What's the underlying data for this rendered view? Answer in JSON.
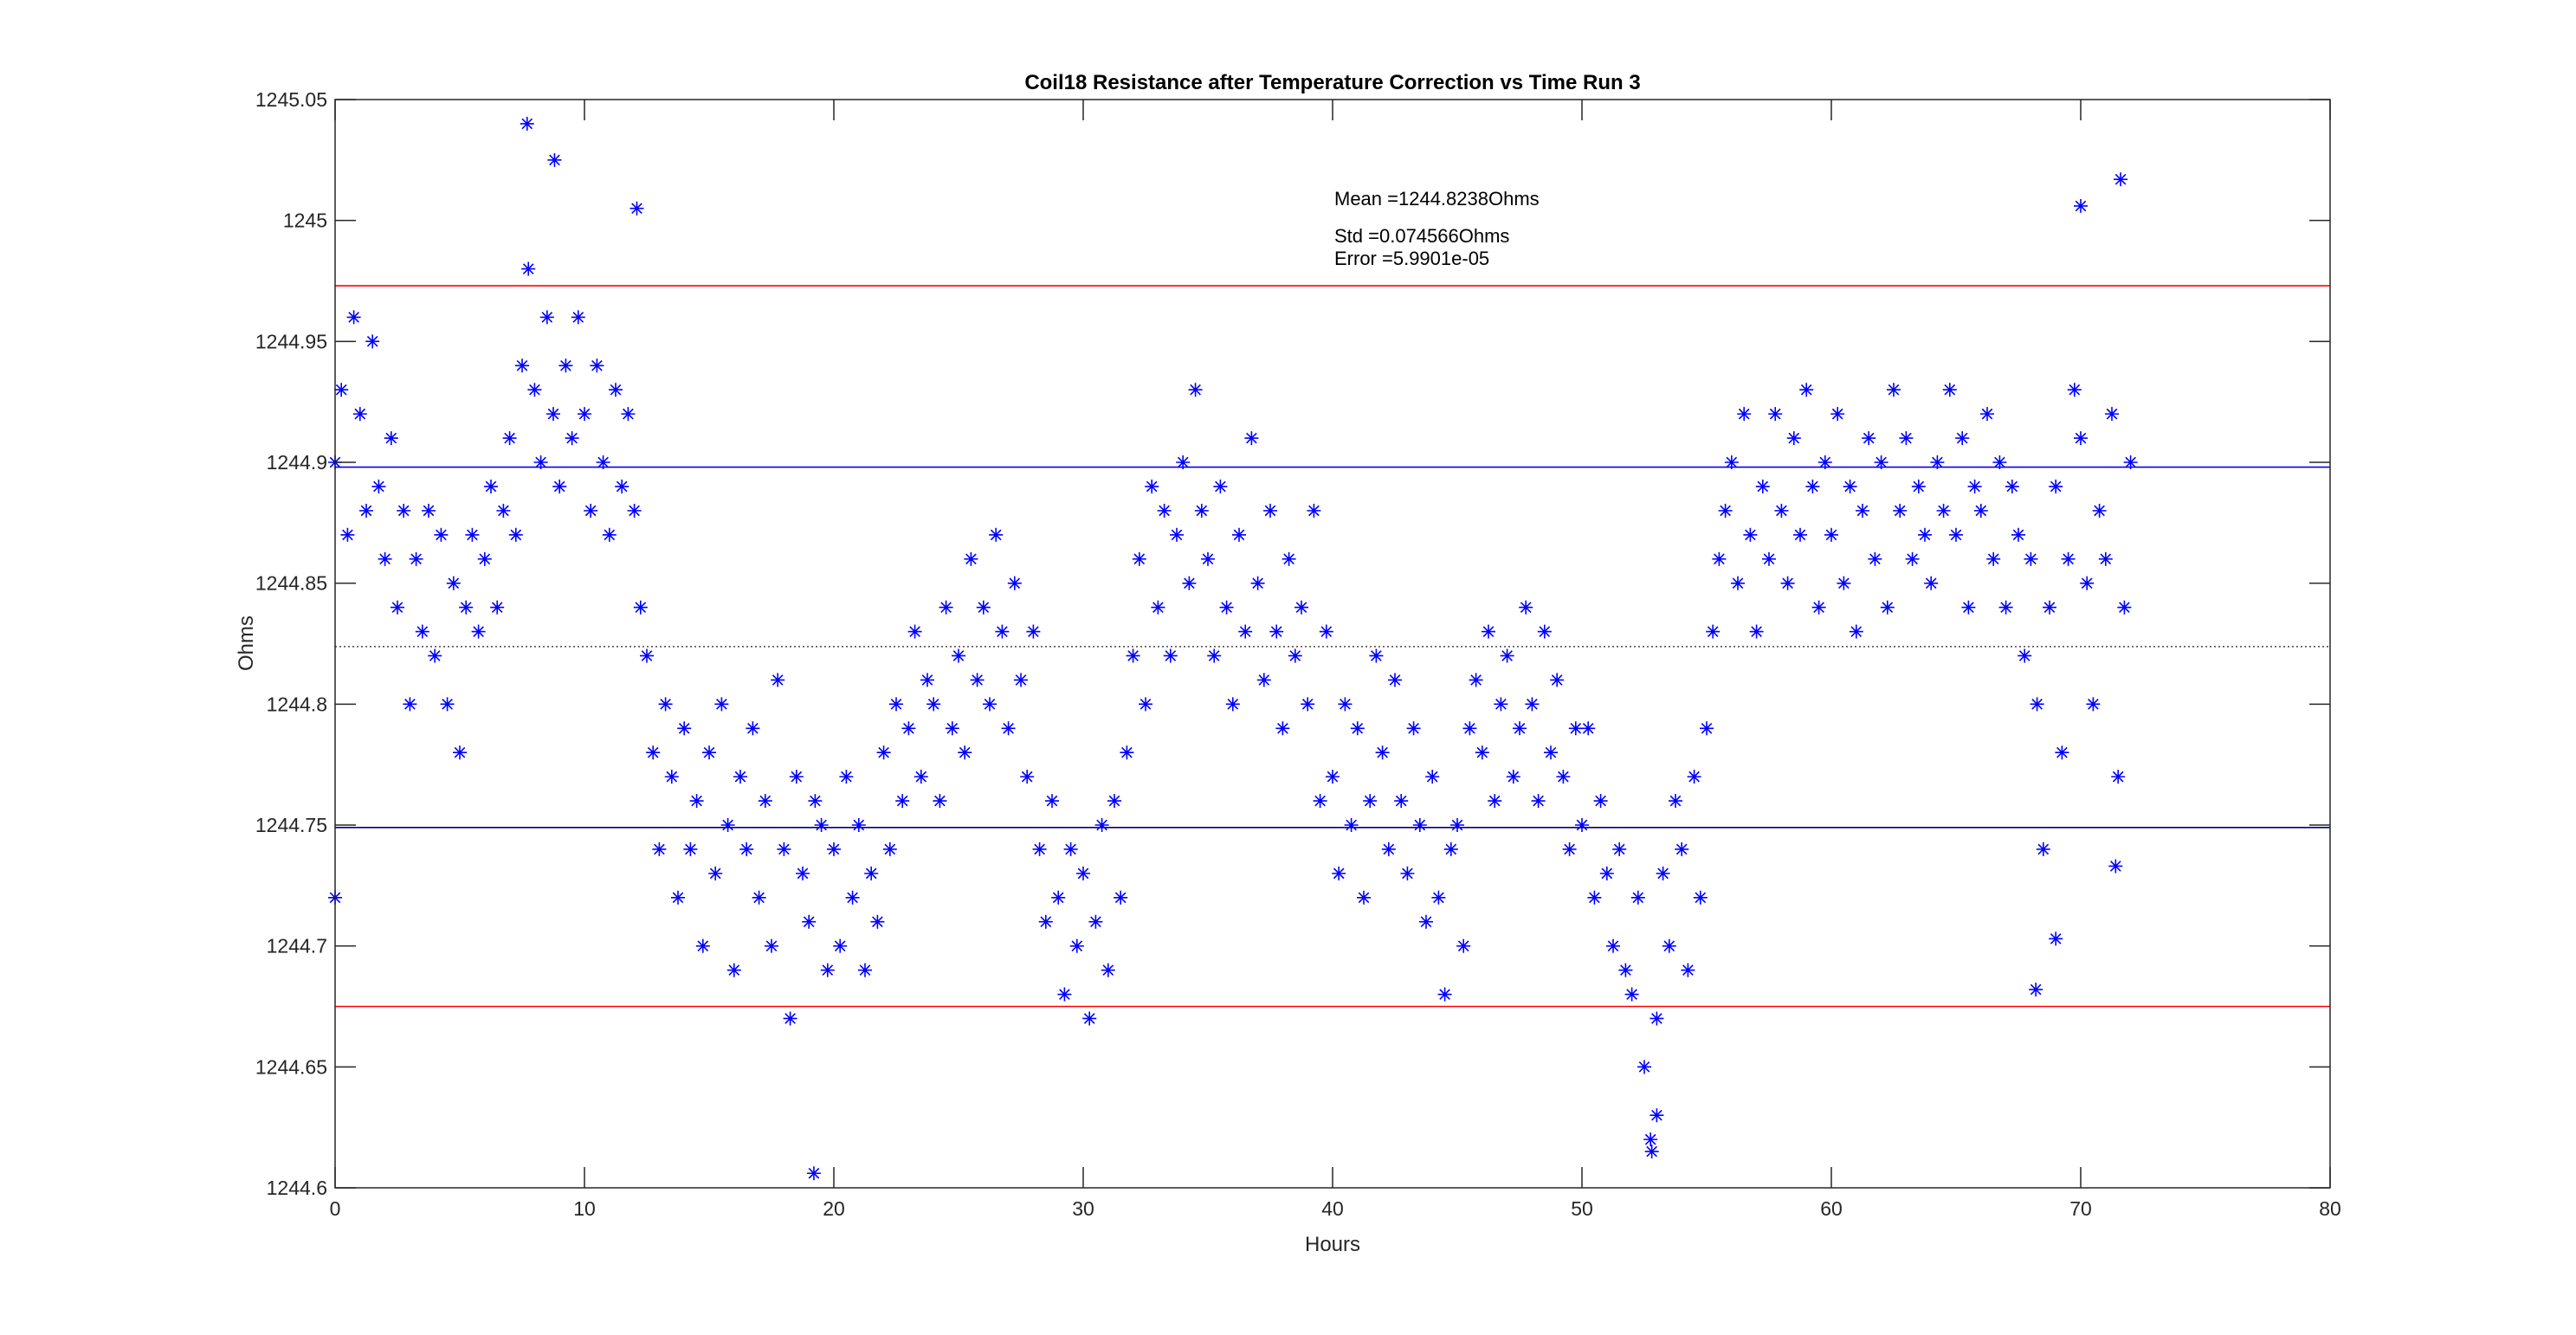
{
  "chart_data": {
    "type": "scatter",
    "title": "Coil18 Resistance after Temperature Correction vs Time Run 3",
    "xlabel": "Hours",
    "ylabel": "Ohms",
    "xlim": [
      0,
      80
    ],
    "ylim": [
      1244.6,
      1245.05
    ],
    "xticks": [
      "0",
      "10",
      "20",
      "30",
      "40",
      "50",
      "60",
      "70",
      "80"
    ],
    "yticks": [
      "1244.6",
      "1244.65",
      "1244.7",
      "1244.75",
      "1244.8",
      "1244.85",
      "1244.9",
      "1244.95",
      "1245",
      "1245.05"
    ],
    "grid": false,
    "marker": "asterisk",
    "marker_color": "#0000ff",
    "annotations": {
      "position_hours": 40,
      "mean": "Mean =1244.8238Ohms",
      "std": "Std =0.074566Ohms",
      "error": "Error =5.9901e-05"
    },
    "reference_lines": [
      {
        "name": "mean-plus-2std",
        "y": 1244.973,
        "color": "#ff0000",
        "style": "solid"
      },
      {
        "name": "mean-plus-std",
        "y": 1244.898,
        "color": "#0000ff",
        "style": "solid"
      },
      {
        "name": "mean",
        "y": 1244.8238,
        "color": "#555555",
        "style": "dotted"
      },
      {
        "name": "mean-minus-std",
        "y": 1244.749,
        "color": "#000080",
        "style": "solid"
      },
      {
        "name": "mean-minus-2std",
        "y": 1244.675,
        "color": "#ff0000",
        "style": "solid"
      }
    ],
    "series": [
      {
        "name": "Resistance",
        "x_start": 0,
        "x_step": 0.25,
        "y": [
          1244.9,
          1244.93,
          1244.87,
          1244.96,
          1244.92,
          1244.88,
          1244.95,
          1244.89,
          1244.86,
          1244.91,
          1244.84,
          1244.88,
          1244.8,
          1244.86,
          1244.83,
          1244.88,
          1244.82,
          1244.87,
          1244.8,
          1244.85,
          1244.78,
          1244.84,
          1244.87,
          1244.83,
          1244.86,
          1244.89,
          1244.84,
          1244.88,
          1244.91,
          1244.87,
          1244.94,
          1244.98,
          1244.93,
          1244.9,
          1244.96,
          1244.92,
          1244.89,
          1244.94,
          1244.91,
          1244.96,
          1244.92,
          1244.88,
          1244.94,
          1244.9,
          1244.87,
          1244.93,
          1244.89,
          1244.92,
          1244.88,
          1244.84,
          1244.82,
          1244.78,
          1244.74,
          1244.8,
          1244.77,
          1244.72,
          1244.79,
          1244.74,
          1244.76,
          1244.7,
          1244.78,
          1244.73,
          1244.8,
          1244.75,
          1244.69,
          1244.77,
          1244.74,
          1244.79,
          1244.72,
          1244.76,
          1244.7,
          1244.81,
          1244.74,
          1244.67,
          1244.77,
          1244.73,
          1244.71,
          1244.76,
          1244.75,
          1244.69,
          1244.74,
          1244.7,
          1244.77,
          1244.72,
          1244.75,
          1244.69,
          1244.73,
          1244.71,
          1244.78,
          1244.74,
          1244.8,
          1244.76,
          1244.79,
          1244.83,
          1244.77,
          1244.81,
          1244.8,
          1244.76,
          1244.84,
          1244.79,
          1244.82,
          1244.78,
          1244.86,
          1244.81,
          1244.84,
          1244.8,
          1244.87,
          1244.83,
          1244.79,
          1244.85,
          1244.81,
          1244.77,
          1244.83,
          1244.74,
          1244.71,
          1244.76,
          1244.72,
          1244.68,
          1244.74,
          1244.7,
          1244.73,
          1244.67,
          1244.71,
          1244.75,
          1244.69,
          1244.76,
          1244.72,
          1244.78,
          1244.82,
          1244.86,
          1244.8,
          1244.89,
          1244.84,
          1244.88,
          1244.82,
          1244.87,
          1244.9,
          1244.85,
          1244.93,
          1244.88,
          1244.86,
          1244.82,
          1244.89,
          1244.84,
          1244.8,
          1244.87,
          1244.83,
          1244.91,
          1244.85,
          1244.81,
          1244.88,
          1244.83,
          1244.79,
          1244.86,
          1244.82,
          1244.84,
          1244.8,
          1244.88,
          1244.76,
          1244.83,
          1244.77,
          1244.73,
          1244.8,
          1244.75,
          1244.79,
          1244.72,
          1244.76,
          1244.82,
          1244.78,
          1244.74,
          1244.81,
          1244.76,
          1244.73,
          1244.79,
          1244.75,
          1244.71,
          1244.77,
          1244.72,
          1244.68,
          1244.74,
          1244.75,
          1244.7,
          1244.79,
          1244.81,
          1244.78,
          1244.83,
          1244.76,
          1244.8,
          1244.82,
          1244.77,
          1244.79,
          1244.84,
          1244.8,
          1244.76,
          1244.83,
          1244.78,
          1244.81,
          1244.77,
          1244.74,
          1244.79,
          1244.75,
          1244.79,
          1244.72,
          1244.76,
          1244.73,
          1244.7,
          1244.74,
          1244.69,
          1244.68,
          1244.72,
          1244.65,
          1244.62,
          1244.67,
          1244.73,
          1244.7,
          1244.76,
          1244.74,
          1244.69,
          1244.77,
          1244.72,
          1244.79,
          1244.83,
          1244.86,
          1244.88,
          1244.9,
          1244.85,
          1244.92,
          1244.87,
          1244.83,
          1244.89,
          1244.86,
          1244.92,
          1244.88,
          1244.85,
          1244.91,
          1244.87,
          1244.93,
          1244.89,
          1244.84,
          1244.9,
          1244.87,
          1244.92,
          1244.85,
          1244.89,
          1244.83,
          1244.88,
          1244.91,
          1244.86,
          1244.9,
          1244.84,
          1244.93,
          1244.88,
          1244.91,
          1244.86,
          1244.89,
          1244.87,
          1244.85,
          1244.9,
          1244.88,
          1244.93,
          1244.87,
          1244.91,
          1244.84,
          1244.89,
          1244.88,
          1244.92,
          1244.86,
          1244.9,
          1244.84,
          1244.89,
          1244.87,
          1244.82,
          1244.86,
          1244.8,
          1244.74,
          1244.84,
          1244.89,
          1244.78,
          1244.86,
          1244.93,
          1244.91,
          1244.85,
          1244.8,
          1244.88,
          1244.86,
          1244.92,
          1244.77,
          1244.84,
          1244.9
        ]
      },
      {
        "name": "Outliers",
        "points": [
          [
            0.0,
            1244.72
          ],
          [
            7.7,
            1245.04
          ],
          [
            8.8,
            1245.025
          ],
          [
            12.1,
            1245.005
          ],
          [
            19.2,
            1244.606
          ],
          [
            52.8,
            1244.615
          ],
          [
            53.0,
            1244.63
          ],
          [
            70.0,
            1245.006
          ],
          [
            71.6,
            1245.017
          ],
          [
            68.2,
            1244.682
          ],
          [
            69.0,
            1244.703
          ],
          [
            71.4,
            1244.733
          ]
        ]
      }
    ]
  }
}
